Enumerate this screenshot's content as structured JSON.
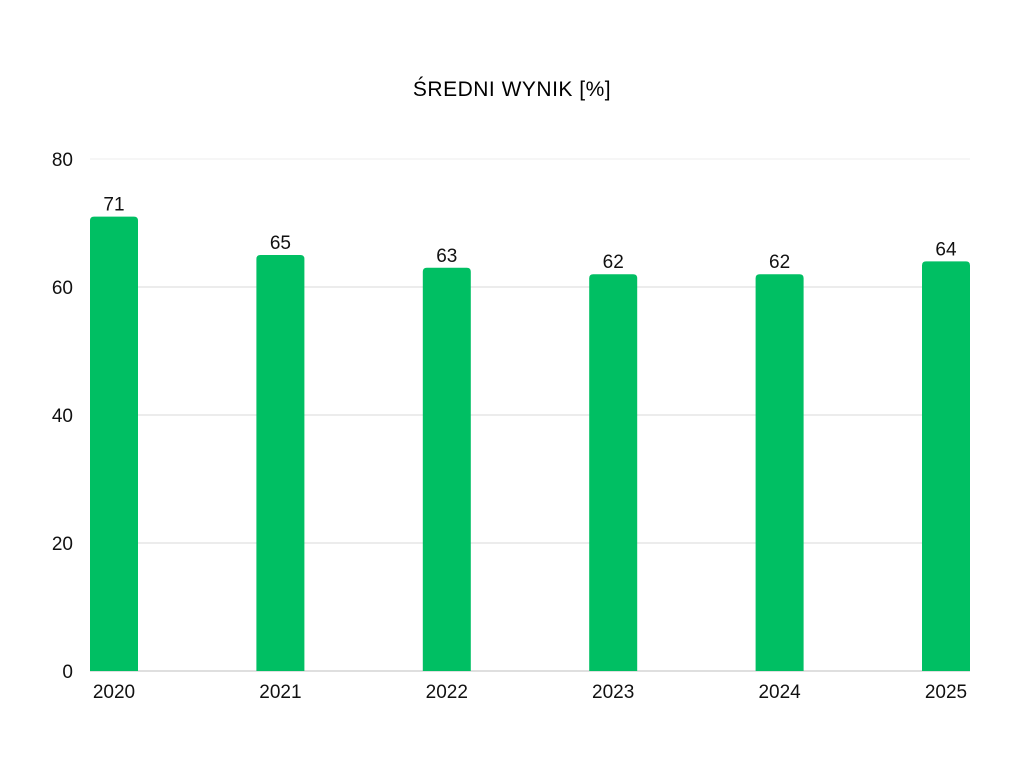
{
  "chart_data": {
    "type": "bar",
    "title": "ŚREDNI WYNIK [%]",
    "xlabel": "",
    "ylabel": "",
    "categories": [
      "2020",
      "2021",
      "2022",
      "2023",
      "2024",
      "2025"
    ],
    "values": [
      71,
      65,
      63,
      62,
      62,
      64
    ],
    "data_labels": [
      "71",
      "65",
      "63",
      "62",
      "62",
      "64"
    ],
    "ylim": [
      0,
      80
    ],
    "yticks": [
      0,
      20,
      40,
      60,
      80
    ],
    "ytick_labels": [
      "0",
      "20",
      "40",
      "60",
      "80"
    ],
    "grid": true,
    "legend": "none",
    "colors": {
      "bar": "#00BF63",
      "grid": "#d9d9d9",
      "axis": "#bfbfbf"
    }
  }
}
